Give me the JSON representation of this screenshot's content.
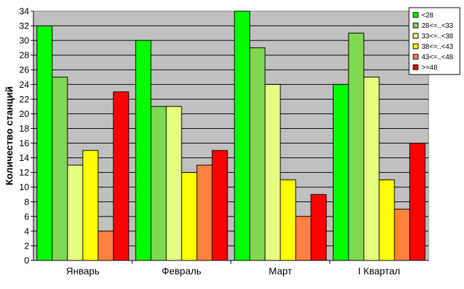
{
  "chart_data": {
    "type": "bar",
    "title": "",
    "xlabel": "",
    "ylabel": "Количество станций",
    "ylim": [
      0,
      34
    ],
    "ytick_step": 2,
    "grid": true,
    "legend_position": "top-right",
    "plot_background": "#c0c0c0",
    "categories": [
      "Январь",
      "Февраль",
      "Март",
      "I Квартал"
    ],
    "series": [
      {
        "name": "<28",
        "color": "#00ff00",
        "values": [
          32,
          30,
          34,
          24
        ]
      },
      {
        "name": "28<=..<33",
        "color": "#80d850",
        "values": [
          25,
          21,
          29,
          31
        ]
      },
      {
        "name": "33<=..<38",
        "color": "#e6ff80",
        "values": [
          13,
          21,
          24,
          25
        ]
      },
      {
        "name": "38<=..<43",
        "color": "#ffff00",
        "values": [
          15,
          12,
          11,
          11
        ]
      },
      {
        "name": "43<=..<48",
        "color": "#ff8040",
        "values": [
          4,
          13,
          6,
          7
        ]
      },
      {
        "name": ">=48",
        "color": "#ff0000",
        "values": [
          23,
          15,
          9,
          16
        ]
      }
    ]
  }
}
